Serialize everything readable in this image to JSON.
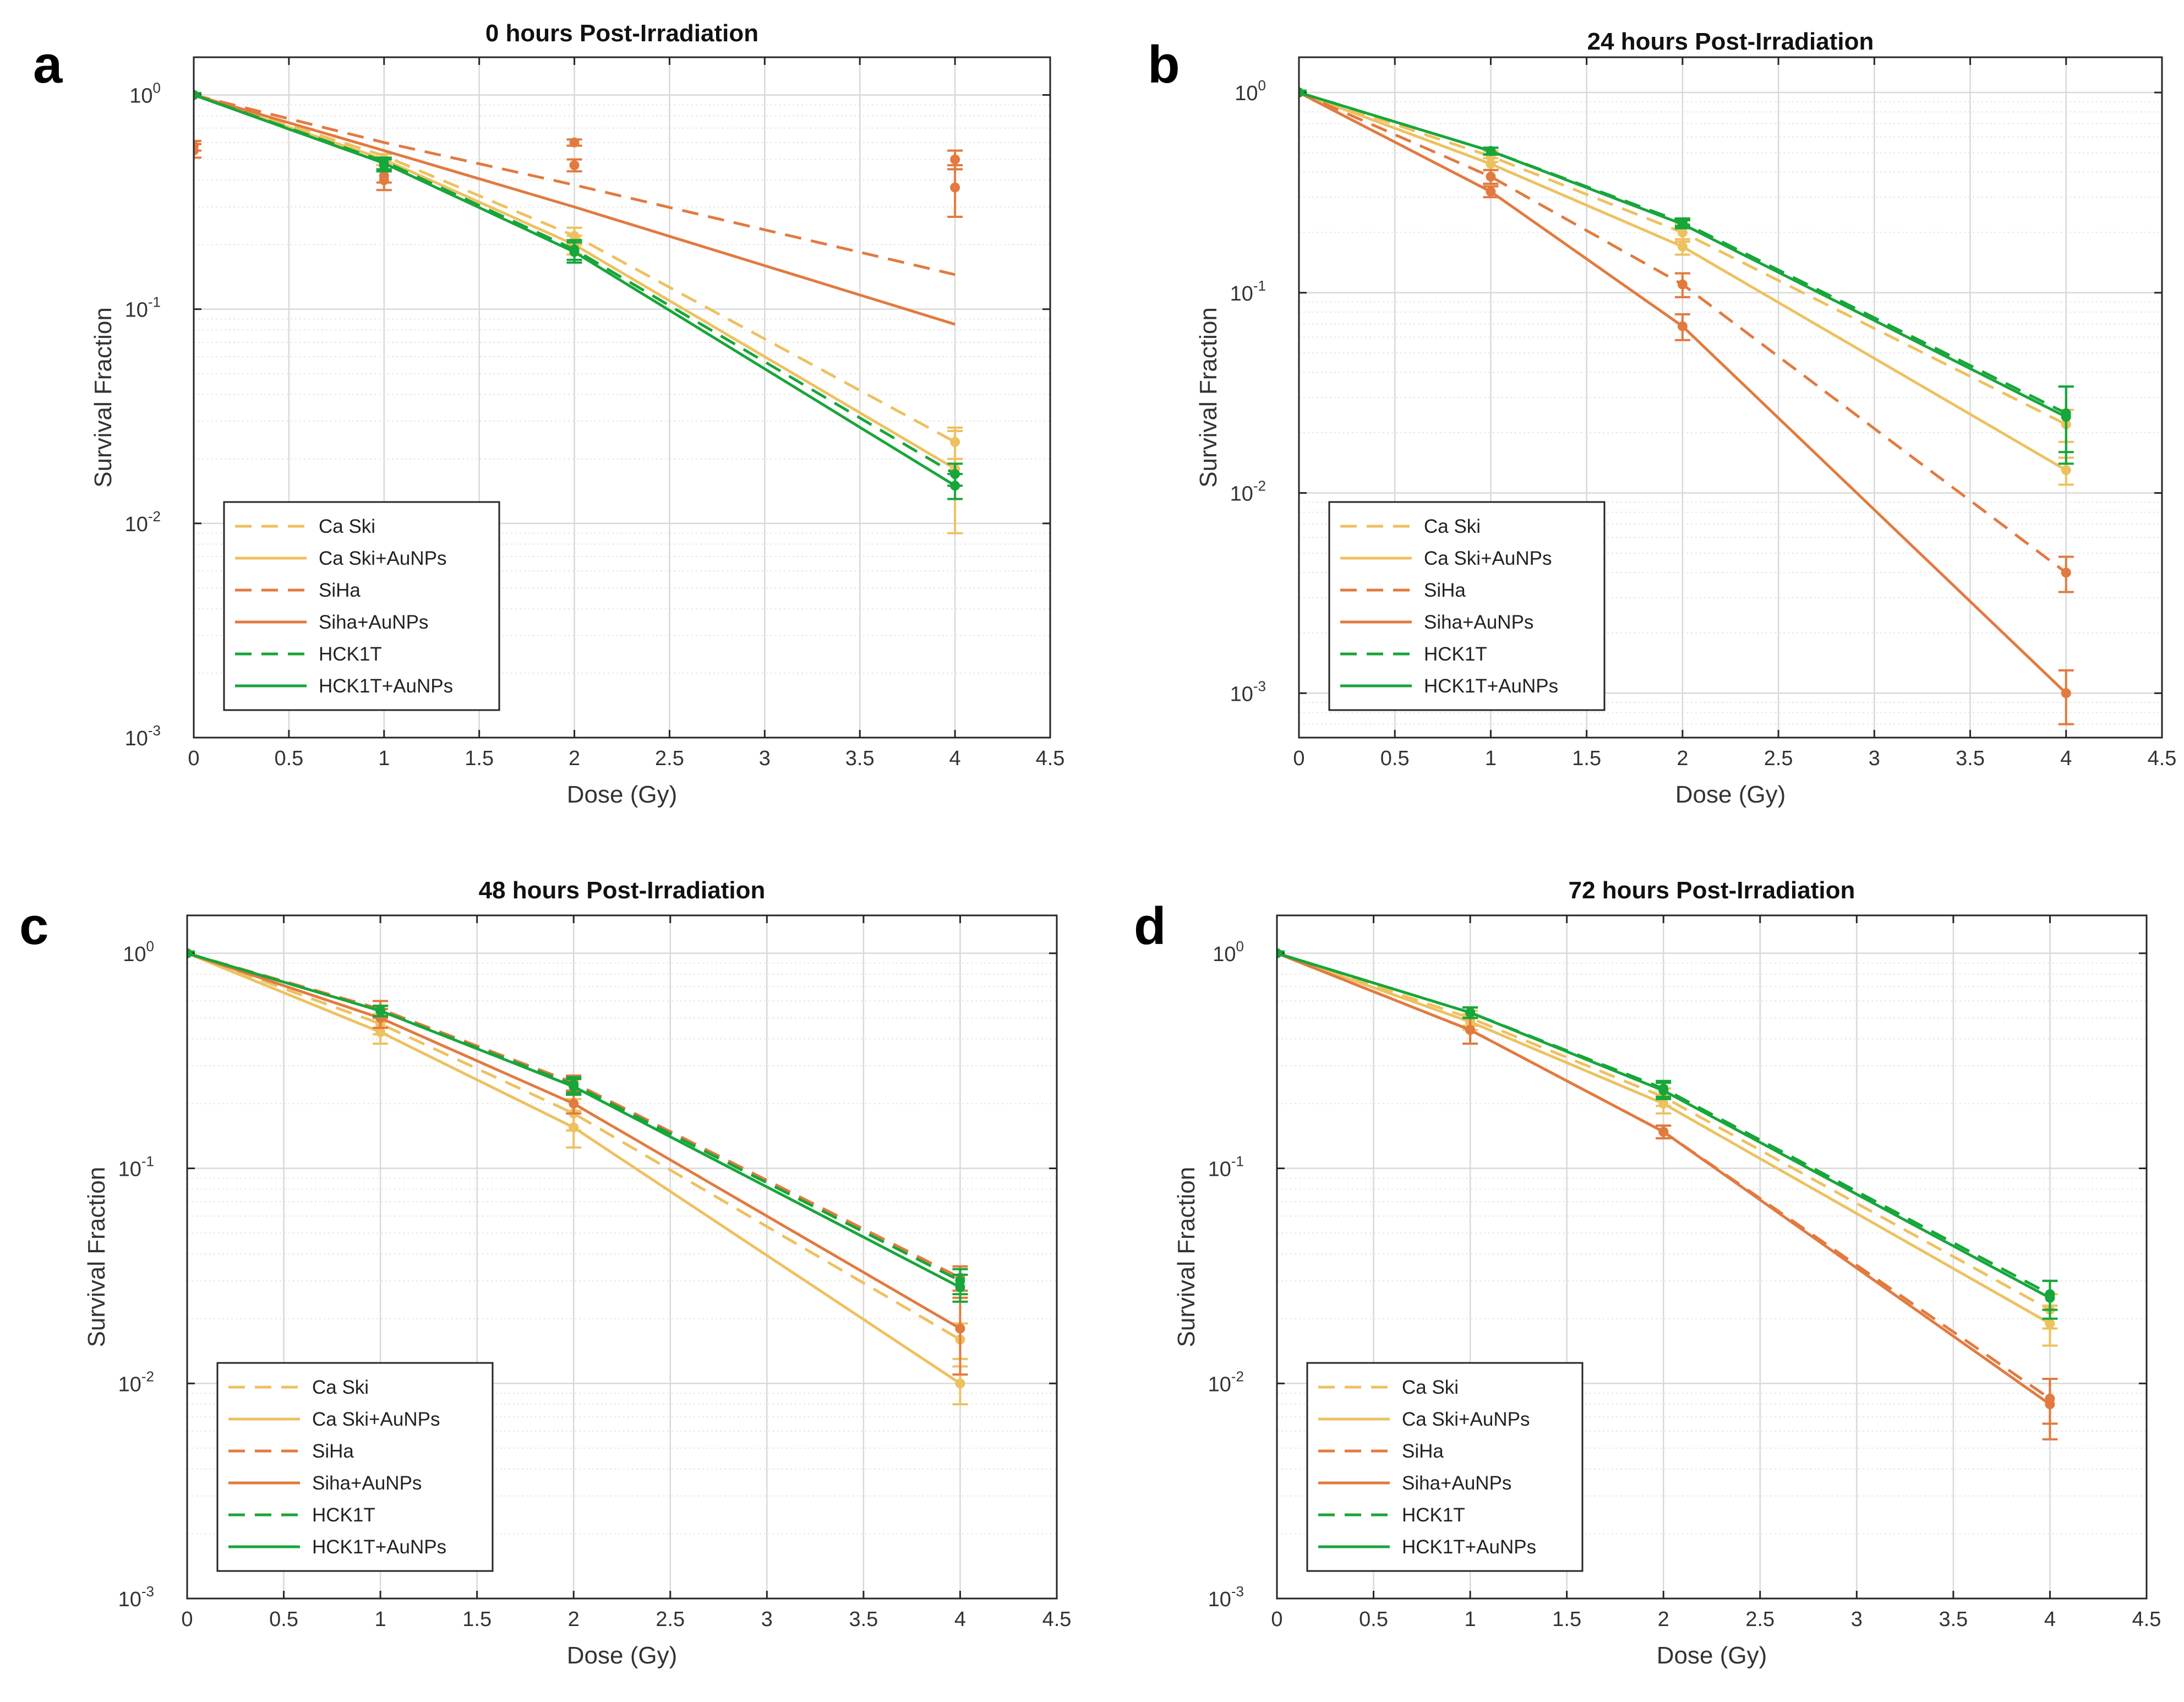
{
  "colors": {
    "caski": "#EDC15F",
    "siha": "#E27A3F",
    "hck1t": "#17A63A",
    "axis": "#262626",
    "grid": "#d9d9d9"
  },
  "chart_data": [
    {
      "panel_label": "a",
      "type": "line",
      "title": "0 hours Post-Irradiation",
      "xlabel": "Dose (Gy)",
      "ylabel": "Survival Fraction",
      "yscale": "log",
      "xlim": [
        0,
        4.5
      ],
      "ylim": [
        0.001,
        1.5
      ],
      "x_ticks": [
        "0",
        "0.5",
        "1",
        "1.5",
        "2",
        "2.5",
        "3",
        "3.5",
        "4",
        "4.5"
      ],
      "y_ticks": [
        "10",
        "10",
        "10",
        "10"
      ],
      "y_tick_exponents": [
        "-3",
        "-2",
        "-1",
        "0"
      ],
      "grid": true,
      "legend_position": "bottom-left",
      "legend": [
        "Ca Ski",
        "Ca Ski+AuNPs",
        "SiHa",
        "Siha+AuNPs",
        "HCK1T",
        "HCK1T+AuNPs"
      ],
      "series": [
        {
          "name": "Ca Ski",
          "line": "dashed",
          "color": "caski",
          "x": [
            0,
            1,
            2,
            4
          ],
          "fit": [
            1,
            0.52,
            0.22,
            0.024
          ],
          "points": [
            1,
            0.5,
            0.22,
            0.024
          ],
          "err": [
            0.02,
            0.03,
            0.02,
            0.004
          ]
        },
        {
          "name": "Ca Ski+AuNPs",
          "line": "solid",
          "color": "caski",
          "x": [
            0,
            1,
            2,
            4
          ],
          "fit": [
            1,
            0.5,
            0.2,
            0.018
          ],
          "points": [
            1,
            0.5,
            0.2,
            0.018
          ],
          "err": [
            0.02,
            0.03,
            0.02,
            0.009
          ]
        },
        {
          "name": "SiHa",
          "line": "dashed",
          "color": "siha",
          "x": [
            0,
            1,
            2,
            4
          ],
          "fit": [
            1,
            0.6,
            0.38,
            0.145
          ],
          "points": [
            0.58,
            0.42,
            0.6,
            0.5
          ],
          "err": [
            0.03,
            0.03,
            0.02,
            0.05
          ]
        },
        {
          "name": "Siha+AuNPs",
          "line": "solid",
          "color": "siha",
          "x": [
            0,
            1,
            2,
            4
          ],
          "fit": [
            1,
            0.55,
            0.3,
            0.085
          ],
          "points": [
            0.55,
            0.4,
            0.47,
            0.37
          ],
          "err": [
            0.04,
            0.04,
            0.03,
            0.1
          ]
        },
        {
          "name": "HCK1T",
          "line": "dashed",
          "color": "hck1t",
          "x": [
            0,
            1,
            2,
            4
          ],
          "fit": [
            1,
            0.49,
            0.19,
            0.017
          ],
          "points": [
            1,
            0.48,
            0.19,
            0.017
          ],
          "err": [
            0.02,
            0.03,
            0.02,
            0.002
          ]
        },
        {
          "name": "HCK1T+AuNPs",
          "line": "solid",
          "color": "hck1t",
          "x": [
            0,
            1,
            2,
            4
          ],
          "fit": [
            1,
            0.48,
            0.185,
            0.015
          ],
          "points": [
            1,
            0.47,
            0.185,
            0.015
          ],
          "err": [
            0.02,
            0.03,
            0.02,
            0.002
          ]
        }
      ]
    },
    {
      "panel_label": "b",
      "type": "line",
      "title": "24 hours Post-Irradiation",
      "xlabel": "Dose (Gy)",
      "ylabel": "Survival Fraction",
      "yscale": "log",
      "xlim": [
        0,
        4.5
      ],
      "ylim": [
        0.0006,
        1.5
      ],
      "x_ticks": [
        "0",
        "0.5",
        "1",
        "1.5",
        "2",
        "2.5",
        "3",
        "3.5",
        "4",
        "4.5"
      ],
      "y_ticks": [
        "10",
        "10",
        "10",
        "10"
      ],
      "y_tick_exponents": [
        "-3",
        "-2",
        "-1",
        "0"
      ],
      "grid": true,
      "legend_position": "bottom-left",
      "legend": [
        "Ca Ski",
        "Ca Ski+AuNPs",
        "SiHa",
        "Siha+AuNPs",
        "HCK1T",
        "HCK1T+AuNPs"
      ],
      "series": [
        {
          "name": "Ca Ski",
          "line": "dashed",
          "color": "caski",
          "x": [
            0,
            1,
            2,
            4
          ],
          "fit": [
            1,
            0.48,
            0.2,
            0.022
          ],
          "points": [
            1,
            0.48,
            0.2,
            0.022
          ],
          "err": [
            0.02,
            0.03,
            0.02,
            0.004
          ]
        },
        {
          "name": "Ca Ski+AuNPs",
          "line": "solid",
          "color": "caski",
          "x": [
            0,
            1,
            2,
            4
          ],
          "fit": [
            1,
            0.44,
            0.17,
            0.013
          ],
          "points": [
            1,
            0.44,
            0.17,
            0.013
          ],
          "err": [
            0.02,
            0.03,
            0.015,
            0.002
          ]
        },
        {
          "name": "SiHa",
          "line": "dashed",
          "color": "siha",
          "x": [
            0,
            1,
            2,
            4
          ],
          "fit": [
            1,
            0.38,
            0.11,
            0.004
          ],
          "points": [
            1,
            0.38,
            0.11,
            0.004
          ],
          "err": [
            0.02,
            0.03,
            0.015,
            0.0008
          ]
        },
        {
          "name": "Siha+AuNPs",
          "line": "solid",
          "color": "siha",
          "x": [
            0,
            1,
            2,
            4
          ],
          "fit": [
            1,
            0.32,
            0.068,
            0.001
          ],
          "points": [
            1,
            0.32,
            0.068,
            0.001
          ],
          "err": [
            0.02,
            0.02,
            0.01,
            0.0003
          ]
        },
        {
          "name": "HCK1T",
          "line": "dashed",
          "color": "hck1t",
          "x": [
            0,
            1,
            2,
            4
          ],
          "fit": [
            1,
            0.51,
            0.225,
            0.025
          ],
          "points": [
            1,
            0.51,
            0.225,
            0.025
          ],
          "err": [
            0.02,
            0.02,
            0.01,
            0.009
          ]
        },
        {
          "name": "HCK1T+AuNPs",
          "line": "solid",
          "color": "hck1t",
          "x": [
            0,
            1,
            2,
            4
          ],
          "fit": [
            1,
            0.51,
            0.22,
            0.024
          ],
          "points": [
            1,
            0.51,
            0.22,
            0.024
          ],
          "err": [
            0.02,
            0.02,
            0.01,
            0.01
          ]
        }
      ]
    },
    {
      "panel_label": "c",
      "type": "line",
      "title": "48 hours Post-Irradiation",
      "xlabel": "Dose (Gy)",
      "ylabel": "Survival Fraction",
      "yscale": "log",
      "xlim": [
        0,
        4.5
      ],
      "ylim": [
        0.001,
        1.5
      ],
      "x_ticks": [
        "0",
        "0.5",
        "1",
        "1.5",
        "2",
        "2.5",
        "3",
        "3.5",
        "4",
        "4.5"
      ],
      "y_ticks": [
        "10",
        "10",
        "10",
        "10"
      ],
      "y_tick_exponents": [
        "-3",
        "-2",
        "-1",
        "0"
      ],
      "grid": true,
      "legend_position": "bottom-left",
      "legend": [
        "Ca Ski",
        "Ca Ski+AuNPs",
        "SiHa",
        "Siha+AuNPs",
        "HCK1T",
        "HCK1T+AuNPs"
      ],
      "series": [
        {
          "name": "Ca Ski",
          "line": "dashed",
          "color": "caski",
          "x": [
            0,
            1,
            2,
            4
          ],
          "fit": [
            1,
            0.47,
            0.18,
            0.016
          ],
          "points": [
            1,
            0.47,
            0.18,
            0.016
          ],
          "err": [
            0.02,
            0.05,
            0.03,
            0.003
          ]
        },
        {
          "name": "Ca Ski+AuNPs",
          "line": "solid",
          "color": "caski",
          "x": [
            0,
            1,
            2,
            4
          ],
          "fit": [
            1,
            0.43,
            0.155,
            0.01
          ],
          "points": [
            1,
            0.43,
            0.155,
            0.01
          ],
          "err": [
            0.02,
            0.05,
            0.03,
            0.002
          ]
        },
        {
          "name": "SiHa",
          "line": "dashed",
          "color": "siha",
          "x": [
            0,
            1,
            2,
            4
          ],
          "fit": [
            1,
            0.55,
            0.25,
            0.031
          ],
          "points": [
            1,
            0.55,
            0.25,
            0.031
          ],
          "err": [
            0.02,
            0.05,
            0.02,
            0.004
          ]
        },
        {
          "name": "Siha+AuNPs",
          "line": "solid",
          "color": "siha",
          "x": [
            0,
            1,
            2,
            4
          ],
          "fit": [
            1,
            0.5,
            0.2,
            0.018
          ],
          "points": [
            1,
            0.5,
            0.2,
            0.018
          ],
          "err": [
            0.02,
            0.05,
            0.02,
            0.007
          ]
        },
        {
          "name": "HCK1T",
          "line": "dashed",
          "color": "hck1t",
          "x": [
            0,
            1,
            2,
            4
          ],
          "fit": [
            1,
            0.54,
            0.245,
            0.03
          ],
          "points": [
            1,
            0.54,
            0.245,
            0.03
          ],
          "err": [
            0.02,
            0.03,
            0.02,
            0.004
          ]
        },
        {
          "name": "HCK1T+AuNPs",
          "line": "solid",
          "color": "hck1t",
          "x": [
            0,
            1,
            2,
            4
          ],
          "fit": [
            1,
            0.54,
            0.24,
            0.028
          ],
          "points": [
            1,
            0.54,
            0.24,
            0.028
          ],
          "err": [
            0.02,
            0.03,
            0.02,
            0.004
          ]
        }
      ]
    },
    {
      "panel_label": "d",
      "type": "line",
      "title": "72 hours Post-Irradiation",
      "xlabel": "Dose (Gy)",
      "ylabel": "Survival Fraction",
      "yscale": "log",
      "xlim": [
        0,
        4.5
      ],
      "ylim": [
        0.001,
        1.5
      ],
      "x_ticks": [
        "0",
        "0.5",
        "1",
        "1.5",
        "2",
        "2.5",
        "3",
        "3.5",
        "4",
        "4.5"
      ],
      "y_ticks": [
        "10",
        "10",
        "10",
        "10"
      ],
      "y_tick_exponents": [
        "-3",
        "-2",
        "-1",
        "0"
      ],
      "grid": true,
      "legend_position": "bottom-left",
      "legend": [
        "Ca Ski",
        "Ca Ski+AuNPs",
        "SiHa",
        "Siha+AuNPs",
        "HCK1T",
        "HCK1T+AuNPs"
      ],
      "series": [
        {
          "name": "Ca Ski",
          "line": "dashed",
          "color": "caski",
          "x": [
            0,
            1,
            2,
            4
          ],
          "fit": [
            1,
            0.5,
            0.215,
            0.022
          ],
          "points": [
            1,
            0.5,
            0.215,
            0.022
          ],
          "err": [
            0.02,
            0.04,
            0.02,
            0.004
          ]
        },
        {
          "name": "Ca Ski+AuNPs",
          "line": "solid",
          "color": "caski",
          "x": [
            0,
            1,
            2,
            4
          ],
          "fit": [
            1,
            0.48,
            0.2,
            0.019
          ],
          "points": [
            1,
            0.48,
            0.2,
            0.019
          ],
          "err": [
            0.02,
            0.04,
            0.02,
            0.004
          ]
        },
        {
          "name": "SiHa",
          "line": "dashed",
          "color": "siha",
          "x": [
            0,
            1,
            2,
            4
          ],
          "fit": [
            1,
            0.44,
            0.148,
            0.0085
          ],
          "points": [
            1,
            0.44,
            0.148,
            0.0085
          ],
          "err": [
            0.02,
            0.06,
            0.01,
            0.002
          ]
        },
        {
          "name": "Siha+AuNPs",
          "line": "solid",
          "color": "siha",
          "x": [
            0,
            1,
            2,
            4
          ],
          "fit": [
            1,
            0.44,
            0.148,
            0.008
          ],
          "points": [
            1,
            0.44,
            0.148,
            0.008
          ],
          "err": [
            0.02,
            0.06,
            0.01,
            0.0025
          ]
        },
        {
          "name": "HCK1T",
          "line": "dashed",
          "color": "hck1t",
          "x": [
            0,
            1,
            2,
            4
          ],
          "fit": [
            1,
            0.53,
            0.235,
            0.026
          ],
          "points": [
            1,
            0.53,
            0.235,
            0.026
          ],
          "err": [
            0.02,
            0.03,
            0.02,
            0.004
          ]
        },
        {
          "name": "HCK1T+AuNPs",
          "line": "solid",
          "color": "hck1t",
          "x": [
            0,
            1,
            2,
            4
          ],
          "fit": [
            1,
            0.53,
            0.23,
            0.025
          ],
          "points": [
            1,
            0.53,
            0.23,
            0.025
          ],
          "err": [
            0.02,
            0.03,
            0.02,
            0.005
          ]
        }
      ]
    }
  ]
}
